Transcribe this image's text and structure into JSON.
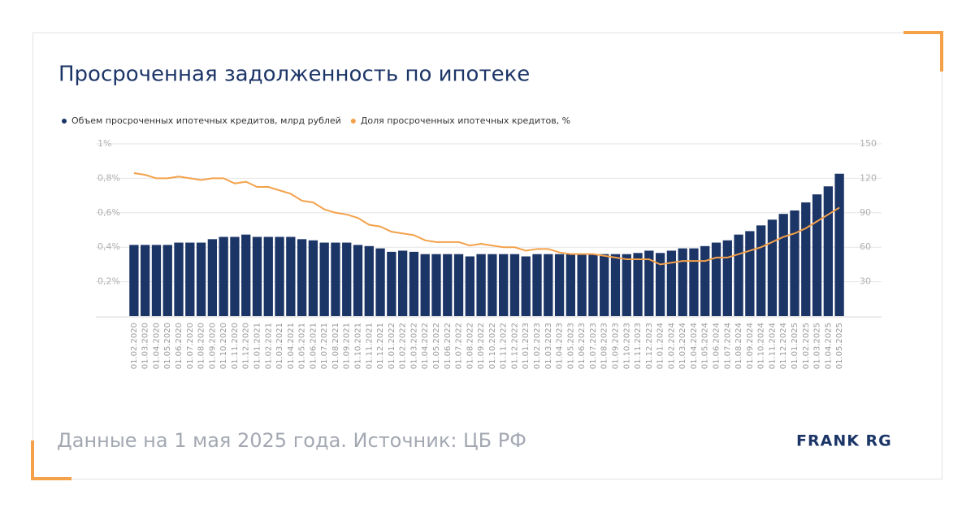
{
  "chart_data": {
    "type": "bar_line",
    "title": "Просроченная задолженность по ипотеке",
    "footer": "Данные на 1 мая 2025 года. Источник: ЦБ РФ",
    "brand": "FRANK RG",
    "categories": [
      "01.02.2020",
      "01.03.2020",
      "01.04.2020",
      "01.05.2020",
      "01.06.2020",
      "01.07.2020",
      "01.08.2020",
      "01.09.2020",
      "01.10.2020",
      "01.11.2020",
      "01.12.2020",
      "01.01.2021",
      "01.02.2021",
      "01.03.2021",
      "01.04.2021",
      "01.05.2021",
      "01.06.2021",
      "01.07.2021",
      "01.08.2021",
      "01.09.2021",
      "01.10.2021",
      "01.11.2021",
      "01.12.2021",
      "01.01.2022",
      "01.02.2022",
      "01.03.2022",
      "01.04.2022",
      "01.05.2022",
      "01.06.2022",
      "01.07.2022",
      "01.08.2022",
      "01.09.2022",
      "01.10.2022",
      "01.11.2022",
      "01.12.2022",
      "01.01.2023",
      "01.02.2023",
      "01.03.2023",
      "01.04.2023",
      "01.05.2023",
      "01.06.2023",
      "01.07.2023",
      "01.08.2023",
      "01.09.2023",
      "01.10.2023",
      "01.11.2023",
      "01.12.2023",
      "01.01.2024",
      "01.02.2024",
      "01.03.2024",
      "01.04.2024",
      "01.05.2024",
      "01.06.2024",
      "01.07.2024",
      "01.08.2024",
      "01.09.2024",
      "01.10.2024",
      "01.11.2024",
      "01.12.2024",
      "01.01.2025",
      "01.02.2025",
      "01.03.2025",
      "01.04.2025",
      "01.05.2025"
    ],
    "series": [
      {
        "name": "Объем просроченных ипотечных кредитов, млрд рублей",
        "color": "#1c3567",
        "type": "bar",
        "axis": "y2",
        "values": [
          62,
          62,
          62,
          62,
          64,
          64,
          64,
          67,
          69,
          69,
          71,
          69,
          69,
          69,
          69,
          67,
          66,
          64,
          64,
          64,
          62,
          61,
          59,
          56,
          57,
          56,
          54,
          54,
          54,
          54,
          52,
          54,
          54,
          54,
          54,
          52,
          54,
          54,
          54,
          54,
          54,
          54,
          54,
          54,
          54,
          55,
          57,
          55,
          57,
          59,
          59,
          61,
          64,
          66,
          71,
          74,
          79,
          84,
          89,
          92,
          99,
          106,
          113,
          124
        ]
      },
      {
        "name": "Доля просроченных ипотечных кредитов, %",
        "color": "#f4a14a",
        "type": "line",
        "axis": "y",
        "values": [
          0.83,
          0.82,
          0.8,
          0.8,
          0.81,
          0.8,
          0.79,
          0.8,
          0.8,
          0.77,
          0.78,
          0.75,
          0.75,
          0.73,
          0.71,
          0.67,
          0.66,
          0.62,
          0.6,
          0.59,
          0.57,
          0.53,
          0.52,
          0.49,
          0.48,
          0.47,
          0.44,
          0.43,
          0.43,
          0.43,
          0.41,
          0.42,
          0.41,
          0.4,
          0.4,
          0.38,
          0.39,
          0.39,
          0.37,
          0.36,
          0.36,
          0.36,
          0.35,
          0.34,
          0.33,
          0.33,
          0.33,
          0.3,
          0.31,
          0.32,
          0.32,
          0.32,
          0.34,
          0.34,
          0.36,
          0.38,
          0.4,
          0.43,
          0.46,
          0.48,
          0.51,
          0.55,
          0.59,
          0.63
        ]
      }
    ],
    "ylim": [
      0,
      1
    ],
    "yticks": [
      {
        "value": 0.2,
        "label": "0,2%"
      },
      {
        "value": 0.4,
        "label": "0,4%"
      },
      {
        "value": 0.6,
        "label": "0,6%"
      },
      {
        "value": 0.8,
        "label": "0,8%"
      },
      {
        "value": 1,
        "label": "1%"
      }
    ],
    "y2lim": [
      0,
      150
    ],
    "y2ticks": [
      30,
      60,
      90,
      120,
      150
    ],
    "grid": true
  }
}
